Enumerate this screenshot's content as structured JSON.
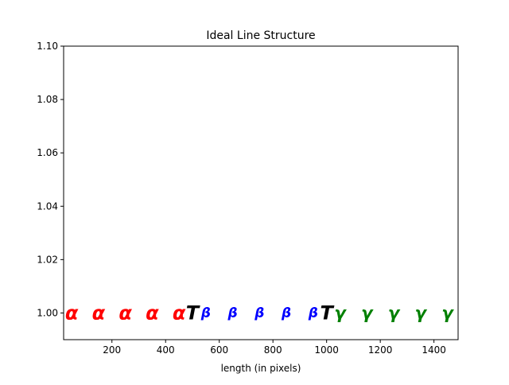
{
  "chart_data": {
    "type": "scatter",
    "title": "Ideal Line Structure",
    "xlabel": "length (in pixels)",
    "ylabel": "",
    "xlim": [
      20,
      1490
    ],
    "ylim": [
      0.99,
      1.1
    ],
    "xticks": [
      200,
      400,
      600,
      800,
      1000,
      1200,
      1400
    ],
    "xtick_labels": [
      "200",
      "400",
      "600",
      "800",
      "1000",
      "1200",
      "1400"
    ],
    "yticks": [
      1.0,
      1.02,
      1.04,
      1.06,
      1.08,
      1.1
    ],
    "ytick_labels": [
      "1.00",
      "1.02",
      "1.04",
      "1.06",
      "1.08",
      "1.10"
    ],
    "grid": false,
    "series": [
      {
        "glyph": "α",
        "color": "#ff0000",
        "size": "large",
        "points": [
          [
            50,
            1.0
          ],
          [
            150,
            1.0
          ],
          [
            250,
            1.0
          ],
          [
            350,
            1.0
          ],
          [
            450,
            1.0
          ]
        ]
      },
      {
        "glyph": "T",
        "color": "#000000",
        "size": "large",
        "points": [
          [
            500,
            1.0
          ],
          [
            1000,
            1.0
          ]
        ]
      },
      {
        "glyph": "β",
        "color": "#0000ff",
        "size": "small",
        "points": [
          [
            550,
            1.0
          ],
          [
            650,
            1.0
          ],
          [
            750,
            1.0
          ],
          [
            850,
            1.0
          ],
          [
            950,
            1.0
          ]
        ]
      },
      {
        "glyph": "γ",
        "color": "#008000",
        "size": "medium",
        "points": [
          [
            1050,
            1.0
          ],
          [
            1150,
            1.0
          ],
          [
            1250,
            1.0
          ],
          [
            1350,
            1.0
          ],
          [
            1450,
            1.0
          ]
        ]
      }
    ]
  }
}
